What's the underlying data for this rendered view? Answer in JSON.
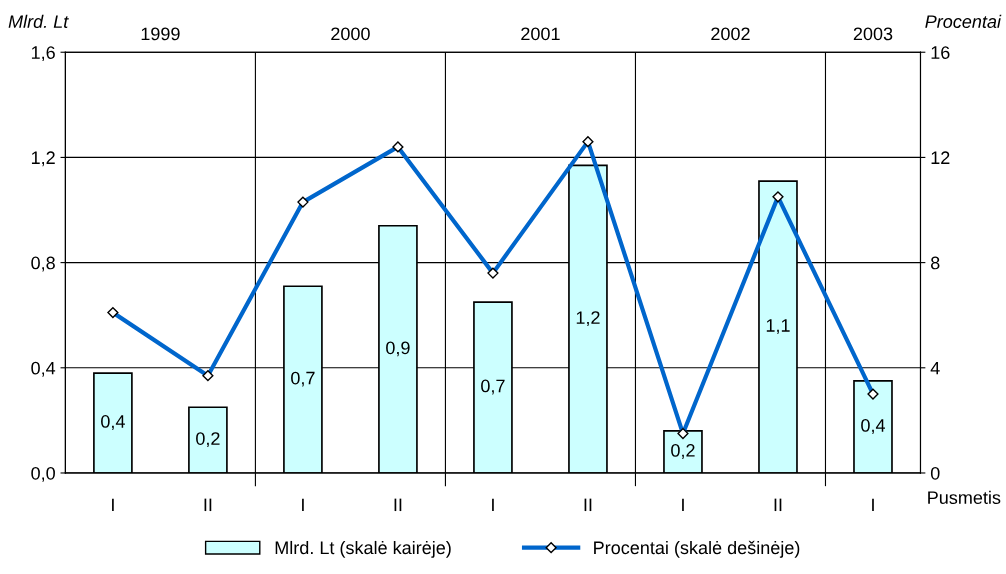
{
  "chart_data": {
    "type": "bar",
    "categories": [
      "I",
      "II",
      "I",
      "II",
      "I",
      "II",
      "I",
      "II",
      "I"
    ],
    "xlabel": "Pusmetis",
    "ylabel": "Mlrd. Lt",
    "y2label": "Procentai",
    "annotations": [
      "1999",
      "2000",
      "2001",
      "2002",
      "2003"
    ],
    "series": [
      {
        "name": "Mlrd. Lt (skalė kairėje)",
        "color": "#ccffff",
        "values": [
          0.38,
          0.25,
          0.71,
          0.94,
          0.65,
          1.17,
          0.16,
          1.11,
          0.35
        ],
        "value_labels": [
          "0,4",
          "0,2",
          "0,7",
          "0,9",
          "0,7",
          "1,2",
          "0,2",
          "1,1",
          "0,4"
        ]
      },
      {
        "name": "Procentai (skalė dešinėje)",
        "type": "line",
        "axis": "y2",
        "color": "#0066cc",
        "marker": "diamond",
        "values": [
          6.1,
          3.7,
          10.3,
          12.4,
          7.6,
          12.6,
          1.5,
          10.5,
          3.0
        ]
      }
    ],
    "ylim": [
      0,
      1.6
    ],
    "yticks": [
      {
        "value": 0,
        "label": "0,0"
      },
      {
        "value": 0.4,
        "label": "0,4"
      },
      {
        "value": 0.8,
        "label": "0,8"
      },
      {
        "value": 1.2,
        "label": "1,2"
      },
      {
        "value": 1.6,
        "label": "1,6"
      }
    ],
    "y2lim": [
      0,
      16
    ],
    "y2ticks": [
      0,
      4,
      8,
      12,
      16
    ],
    "grid": true,
    "legend": "bottom"
  }
}
